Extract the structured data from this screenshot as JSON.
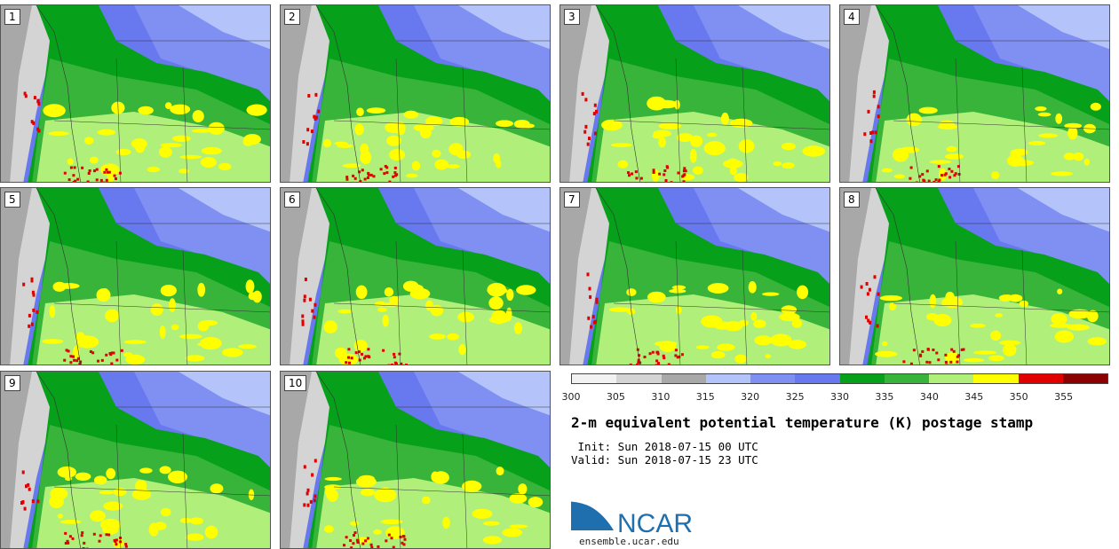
{
  "panels": [
    "1",
    "2",
    "3",
    "4",
    "5",
    "6",
    "7",
    "8",
    "9",
    "10"
  ],
  "colorbar": {
    "colors": [
      "#f2f2f2",
      "#d4d4d4",
      "#a8a8a8",
      "#b4c4fa",
      "#7f8ff2",
      "#6878ee",
      "#06a01a",
      "#38b43a",
      "#b0f07a",
      "#ffff00",
      "#e00000",
      "#8b0000"
    ],
    "ticks": [
      "300",
      "305",
      "310",
      "315",
      "320",
      "325",
      "330",
      "335",
      "340",
      "345",
      "350",
      "355"
    ]
  },
  "title": "2-m equivalent potential temperature (K) postage stamp",
  "init": " Init: Sun 2018-07-15 00 UTC",
  "valid": "Valid: Sun 2018-07-15 23 UTC",
  "logo": {
    "text": "NCAR",
    "url": "ensemble.ucar.edu",
    "color": "#1f6fae"
  }
}
